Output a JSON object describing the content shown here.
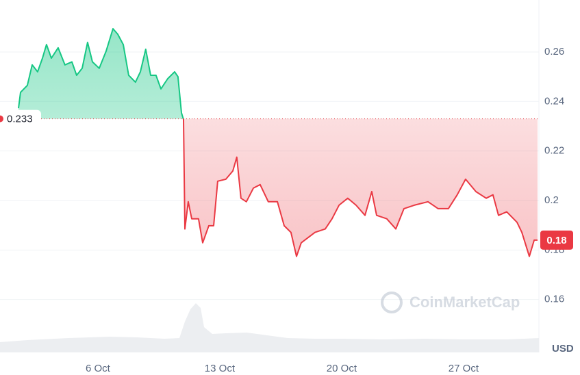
{
  "chart_data": {
    "type": "line",
    "baseline": 0.233,
    "current_price": {
      "value": 0.184,
      "label": "0.18"
    },
    "currency": "USD",
    "watermark": "CoinMarketCap",
    "up_color": "#16c784",
    "down_color": "#ea3943",
    "grid": true,
    "xlim": [
      0.38,
      31.33
    ],
    "xticks": [
      {
        "value": 6,
        "label": "6 Oct"
      },
      {
        "value": 13,
        "label": "13 Oct"
      },
      {
        "value": 20,
        "label": "20 Oct"
      },
      {
        "value": 27,
        "label": "27 Oct"
      }
    ],
    "ylim": [
      0.14,
      0.281
    ],
    "yticks": [
      0.16,
      0.18,
      0.2,
      0.22,
      0.24,
      0.26
    ],
    "series": [
      {
        "name": "Price",
        "x": [
          1.44,
          1.56,
          1.95,
          2.23,
          2.54,
          2.82,
          3.05,
          3.33,
          3.72,
          4.11,
          4.51,
          4.78,
          5.1,
          5.41,
          5.69,
          6.08,
          6.47,
          6.87,
          7.14,
          7.46,
          7.77,
          8.16,
          8.44,
          8.75,
          9.03,
          9.34,
          9.62,
          10.01,
          10.41,
          10.6,
          10.8,
          10.92,
          11.0,
          11.19,
          11.39,
          11.78,
          12.02,
          12.37,
          12.65,
          12.88,
          13.35,
          13.75,
          13.98,
          14.22,
          14.53,
          14.93,
          15.32,
          15.79,
          16.31,
          16.7,
          17.09,
          17.41,
          17.68,
          18.47,
          19.06,
          19.45,
          19.85,
          20.35,
          20.83,
          21.34,
          21.73,
          22.01,
          22.59,
          23.11,
          23.58,
          24.17,
          24.96,
          25.54,
          26.13,
          26.64,
          27.12,
          27.71,
          28.3,
          28.69,
          29.01,
          29.48,
          30.07,
          30.35,
          30.78,
          31.06,
          31.25
        ],
        "values": [
          0.2373,
          0.2437,
          0.2465,
          0.2548,
          0.252,
          0.2575,
          0.263,
          0.2575,
          0.2617,
          0.2548,
          0.256,
          0.2506,
          0.2534,
          0.2639,
          0.256,
          0.2534,
          0.2603,
          0.2694,
          0.2672,
          0.263,
          0.2506,
          0.2478,
          0.252,
          0.2611,
          0.2506,
          0.2506,
          0.2451,
          0.2492,
          0.252,
          0.25,
          0.2354,
          0.2327,
          0.1885,
          0.1995,
          0.1926,
          0.1926,
          0.1829,
          0.1898,
          0.1898,
          0.2078,
          0.2086,
          0.2119,
          0.2175,
          0.2009,
          0.1995,
          0.205,
          0.2064,
          0.1995,
          0.1995,
          0.1898,
          0.1871,
          0.1774,
          0.1829,
          0.1871,
          0.1885,
          0.1926,
          0.1981,
          0.2009,
          0.1981,
          0.194,
          0.2036,
          0.194,
          0.1926,
          0.1885,
          0.1967,
          0.1981,
          0.1995,
          0.1967,
          0.1967,
          0.2023,
          0.2086,
          0.2036,
          0.2009,
          0.2023,
          0.194,
          0.1954,
          0.1912,
          0.1871,
          0.1774,
          0.184,
          0.184
        ]
      }
    ]
  }
}
